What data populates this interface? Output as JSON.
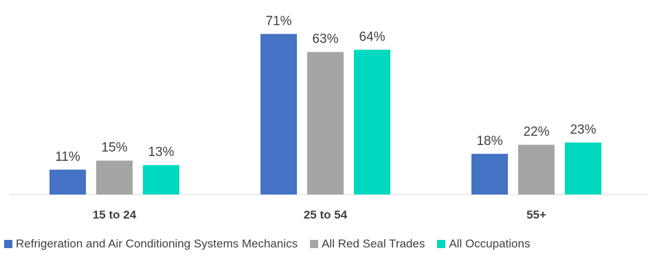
{
  "chart_data": {
    "type": "bar",
    "categories": [
      "15 to 24",
      "25 to 54",
      "55+"
    ],
    "series": [
      {
        "name": "Refrigeration and Air Conditioning Systems Mechanics",
        "values": [
          11,
          71,
          18
        ],
        "color": "#4472C4"
      },
      {
        "name": "All Red Seal Trades",
        "values": [
          15,
          63,
          22
        ],
        "color": "#A5A5A5"
      },
      {
        "name": "All Occupations",
        "values": [
          13,
          64,
          23
        ],
        "color": "#00D9BF"
      }
    ],
    "value_suffix": "%",
    "ylim": [
      0,
      80
    ],
    "grid": false,
    "legend_position": "bottom",
    "title": "",
    "xlabel": "",
    "ylabel": ""
  }
}
